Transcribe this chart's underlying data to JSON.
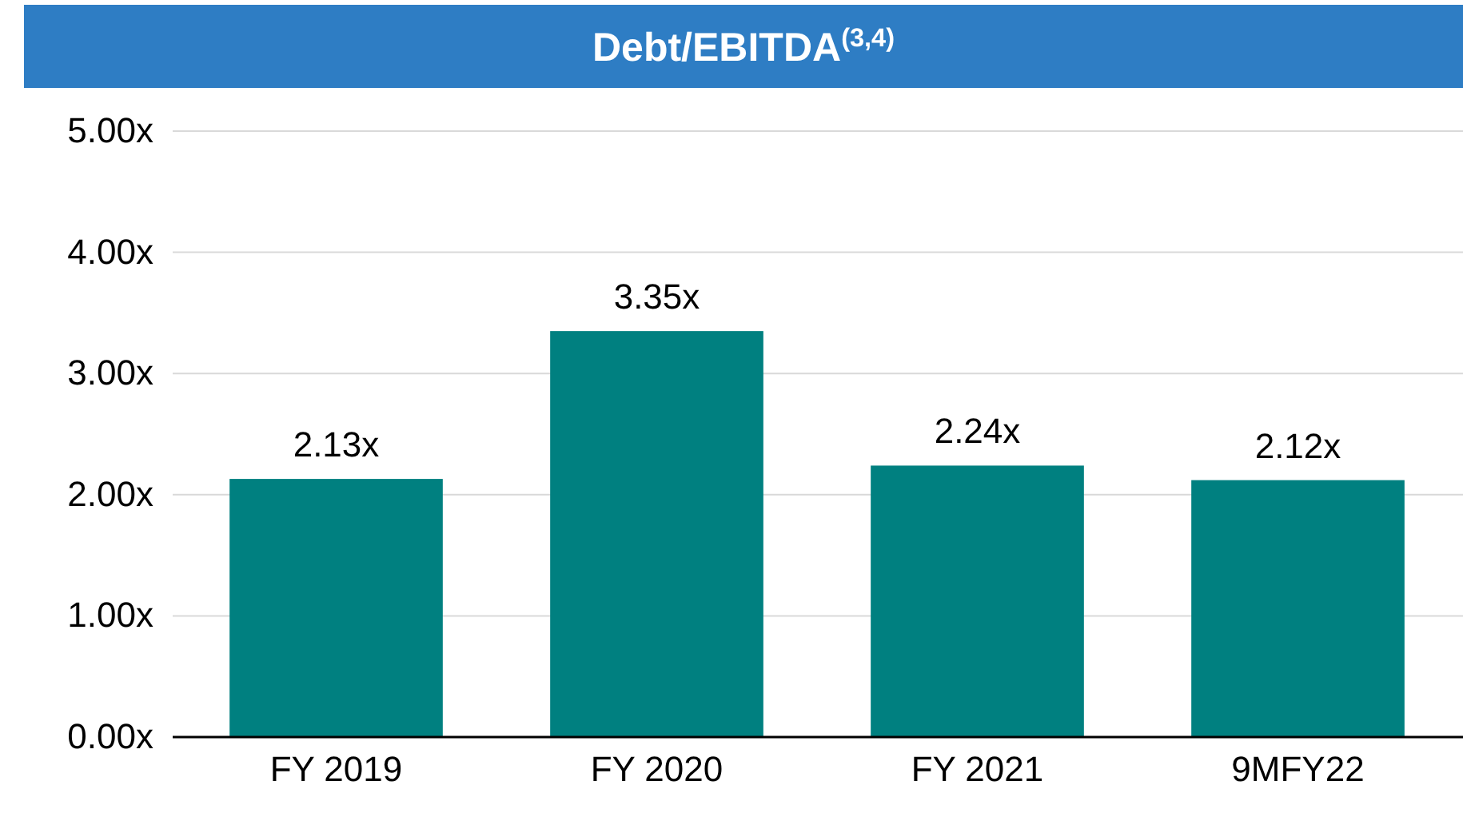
{
  "chart_data": {
    "type": "bar",
    "title": "Debt/EBITDA$^{(3,4)}$",
    "categories": [
      "FY 2019",
      "FY 2020",
      "FY 2021",
      "9MFY22"
    ],
    "values": [
      2.13,
      3.35,
      2.24,
      2.12
    ],
    "value_labels": [
      "2.13x",
      "3.35x",
      "2.24x",
      "2.12x"
    ],
    "color": "#008080",
    "ylim": [
      0,
      5
    ],
    "yticks": [
      {
        "value": 0,
        "label": "0.00x"
      },
      {
        "value": 1,
        "label": "1.00x"
      },
      {
        "value": 2,
        "label": "2.00x"
      },
      {
        "value": 3,
        "label": "3.00x"
      },
      {
        "value": 4,
        "label": "4.00x"
      },
      {
        "value": 5,
        "label": "5.00x"
      }
    ],
    "grid": "y"
  }
}
